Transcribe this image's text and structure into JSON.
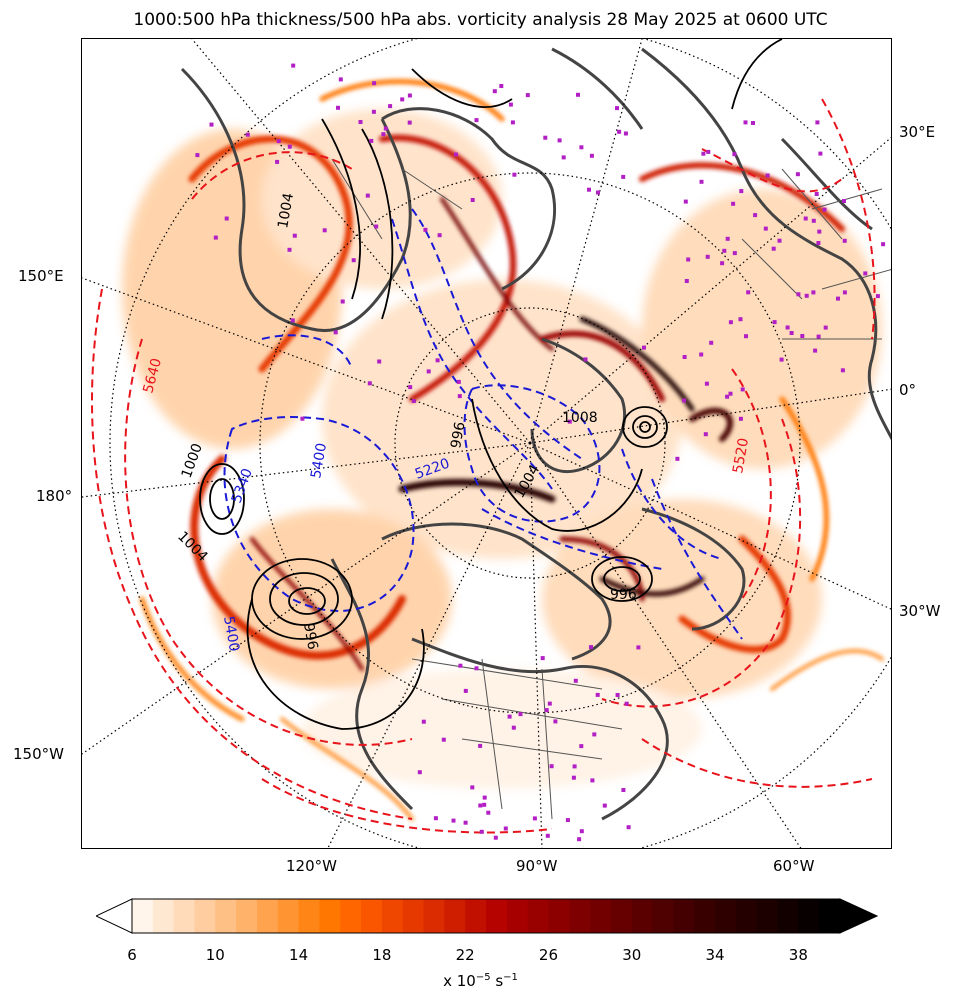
{
  "title": "1000:500 hPa thickness/500 hPa abs. vorticity analysis 28 May 2025 at 0600 UTC",
  "map": {
    "lon_labels": {
      "e30": "30°E",
      "e150": "150°E",
      "zero": "0°",
      "lon180": "180°",
      "w30": "30°W",
      "w150": "150°W",
      "w120": "120°W",
      "w90": "90°W",
      "w60": "60°W"
    },
    "contour_labels": {
      "thickness_red": [
        "5640",
        "5520"
      ],
      "thickness_blue": [
        "5400",
        "5340",
        "5400",
        "5220"
      ],
      "mslp_black": [
        "1004",
        "1000",
        "1008",
        "1004",
        "996",
        "1004",
        "996",
        "996"
      ]
    },
    "colors": {
      "thickness_warm": "#e8141c",
      "thickness_cold": "#1a1ad6",
      "mslp": "#000000",
      "coastline": "#444444",
      "station_markers": "#b21fc4"
    }
  },
  "colorbar": {
    "ticks": [
      "6",
      "10",
      "14",
      "18",
      "22",
      "26",
      "30",
      "34",
      "38"
    ],
    "label_prefix": "x 10",
    "label_exp": "−5",
    "label_unit": " s",
    "label_unit_exp": "−1",
    "colors": [
      "#fff5ea",
      "#ffe8d2",
      "#ffdbb9",
      "#ffcd9f",
      "#ffc085",
      "#ffb26a",
      "#ffa34f",
      "#ff9433",
      "#ff8516",
      "#ff7600",
      "#ff6600",
      "#fa5600",
      "#f04700",
      "#e63900",
      "#db2b00",
      "#cf1d00",
      "#c21000",
      "#b50400",
      "#a70000",
      "#990000",
      "#8c0000",
      "#7f0000",
      "#730000",
      "#660000",
      "#5a0000",
      "#4f0000",
      "#440000",
      "#390000",
      "#2f0000",
      "#250000",
      "#1c0000",
      "#120000",
      "#080000",
      "#000000"
    ]
  }
}
